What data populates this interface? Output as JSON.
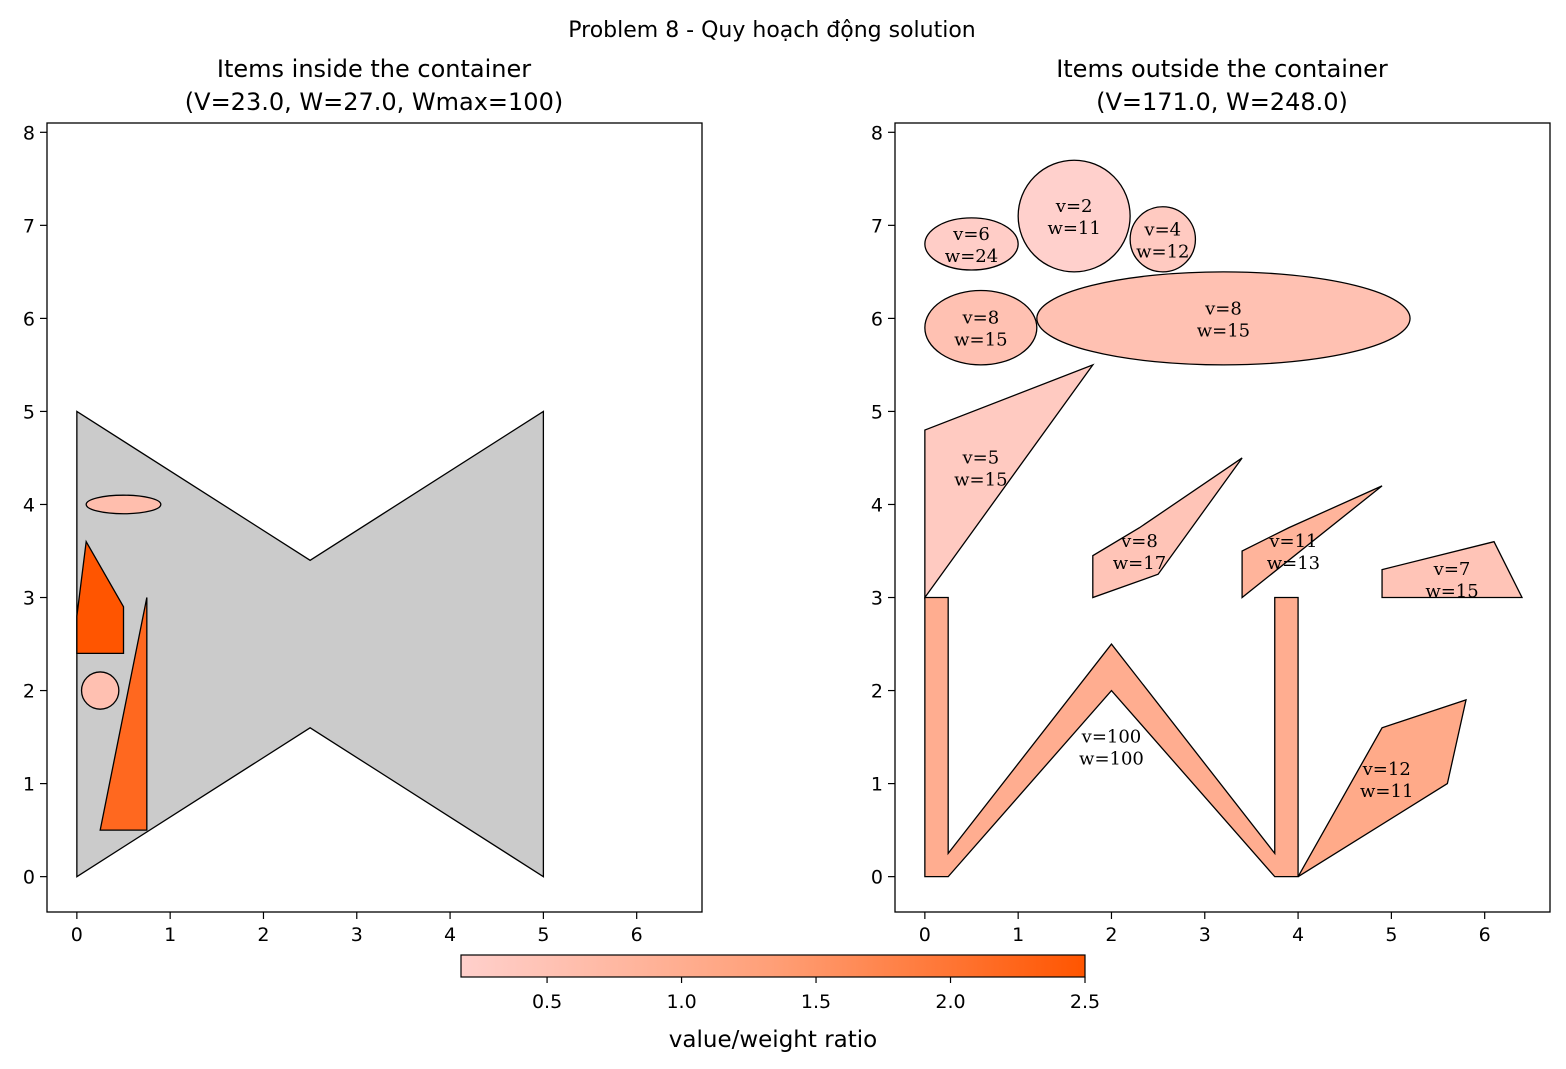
{
  "figure": {
    "suptitle": "Problem 8 - Quy hoạch động solution"
  },
  "colors": {
    "container_fill": "#cbcbcb",
    "stroke": "#000000",
    "cmap_low": "#ffd0cc",
    "cmap_mid": "#ff9f77",
    "cmap_high": "#ff5500"
  },
  "chart_data": [
    {
      "type": "polygon-plot",
      "title_line1": "Items inside the container",
      "title_line2": "(V=23.0, W=27.0, Wmax=100)",
      "xlim": [
        -0.32,
        6.7
      ],
      "ylim": [
        -0.38,
        8.1
      ],
      "xticks": [
        "0",
        "1",
        "2",
        "3",
        "4",
        "5",
        "6"
      ],
      "yticks": [
        "0",
        "1",
        "2",
        "3",
        "4",
        "5",
        "6",
        "7",
        "8"
      ],
      "container": {
        "kind": "polygon",
        "points": [
          [
            0,
            0
          ],
          [
            2.5,
            1.6
          ],
          [
            5,
            0
          ],
          [
            5,
            5
          ],
          [
            2.5,
            3.4
          ],
          [
            0,
            5
          ]
        ]
      },
      "items": [
        {
          "kind": "ellipse",
          "cx": 0.5,
          "cy": 4.0,
          "rx": 0.4,
          "ry": 0.1,
          "ratio": 0.6,
          "label": ""
        },
        {
          "kind": "polygon",
          "points": [
            [
              0,
              2.4
            ],
            [
              0,
              2.8
            ],
            [
              0.1,
              3.6
            ],
            [
              0.5,
              2.9
            ],
            [
              0.5,
              2.4
            ]
          ],
          "ratio": 2.5,
          "label": ""
        },
        {
          "kind": "polygon",
          "points": [
            [
              0.25,
              0.5
            ],
            [
              0.75,
              3.0
            ],
            [
              0.75,
              0.5
            ]
          ],
          "ratio": 2.2,
          "label": ""
        },
        {
          "kind": "ellipse",
          "cx": 0.25,
          "cy": 2.0,
          "rx": 0.2,
          "ry": 0.2,
          "ratio": 0.55,
          "label": ""
        }
      ]
    },
    {
      "type": "polygon-plot",
      "title_line1": "Items outside the container",
      "title_line2": "(V=171.0, W=248.0)",
      "xlim": [
        -0.32,
        6.7
      ],
      "ylim": [
        -0.38,
        8.1
      ],
      "xticks": [
        "0",
        "1",
        "2",
        "3",
        "4",
        "5",
        "6"
      ],
      "yticks": [
        "0",
        "1",
        "2",
        "3",
        "4",
        "5",
        "6",
        "7",
        "8"
      ],
      "items": [
        {
          "kind": "ellipse",
          "cx": 0.5,
          "cy": 6.8,
          "rx": 0.5,
          "ry": 0.28,
          "ratio": 0.25,
          "label_v": "v=6",
          "label_w": "w=24",
          "lx": 0.5,
          "ly": 6.8
        },
        {
          "kind": "ellipse",
          "cx": 1.6,
          "cy": 7.1,
          "rx": 0.6,
          "ry": 0.6,
          "ratio": 0.18,
          "label_v": "v=2",
          "label_w": "w=11",
          "lx": 1.6,
          "ly": 7.1
        },
        {
          "kind": "ellipse",
          "cx": 2.55,
          "cy": 6.85,
          "rx": 0.35,
          "ry": 0.35,
          "ratio": 0.33,
          "label_v": "v=4",
          "label_w": "w=12",
          "lx": 2.55,
          "ly": 6.85
        },
        {
          "kind": "ellipse",
          "cx": 0.6,
          "cy": 5.9,
          "rx": 0.6,
          "ry": 0.4,
          "ratio": 0.53,
          "label_v": "v=8",
          "label_w": "w=15",
          "lx": 0.6,
          "ly": 5.9
        },
        {
          "kind": "ellipse",
          "cx": 3.2,
          "cy": 6.0,
          "rx": 2.0,
          "ry": 0.5,
          "ratio": 0.53,
          "label_v": "v=8",
          "label_w": "w=15",
          "lx": 3.2,
          "ly": 6.0
        },
        {
          "kind": "polygon",
          "points": [
            [
              0,
              3.0
            ],
            [
              0,
              4.8
            ],
            [
              1.8,
              5.5
            ]
          ],
          "ratio": 0.33,
          "label_v": "v=5",
          "label_w": "w=15",
          "lx": 0.6,
          "ly": 4.4
        },
        {
          "kind": "polygon",
          "points": [
            [
              1.8,
              3.0
            ],
            [
              1.8,
              3.45
            ],
            [
              2.3,
              3.75
            ],
            [
              3.4,
              4.5
            ],
            [
              2.5,
              3.25
            ]
          ],
          "ratio": 0.47,
          "label_v": "v=8",
          "label_w": "w=17",
          "lx": 2.3,
          "ly": 3.5
        },
        {
          "kind": "polygon",
          "points": [
            [
              3.4,
              3.0
            ],
            [
              3.4,
              3.5
            ],
            [
              3.9,
              3.75
            ],
            [
              4.9,
              4.2
            ]
          ],
          "ratio": 0.85,
          "label_v": "v=11",
          "label_w": "w=13",
          "lx": 3.95,
          "ly": 3.5
        },
        {
          "kind": "polygon",
          "points": [
            [
              4.9,
              3.0
            ],
            [
              4.9,
              3.3
            ],
            [
              6.1,
              3.6
            ],
            [
              6.4,
              3.0
            ]
          ],
          "ratio": 0.47,
          "label_v": "v=7",
          "label_w": "w=15",
          "lx": 5.65,
          "ly": 3.2
        },
        {
          "kind": "polygon",
          "points": [
            [
              0,
              0
            ],
            [
              0,
              3.0
            ],
            [
              0.25,
              3.0
            ],
            [
              0.25,
              0.25
            ],
            [
              2.0,
              2.5
            ],
            [
              3.75,
              0.25
            ],
            [
              3.75,
              3.0
            ],
            [
              4.0,
              3.0
            ],
            [
              4.0,
              0
            ],
            [
              3.75,
              0
            ],
            [
              2.0,
              2.0
            ],
            [
              0.25,
              0
            ]
          ],
          "ratio": 1.0,
          "label_v": "v=100",
          "label_w": "w=100",
          "lx": 2.0,
          "ly": 1.4
        },
        {
          "kind": "polygon",
          "points": [
            [
              4.0,
              0
            ],
            [
              5.6,
              1.0
            ],
            [
              5.8,
              1.9
            ],
            [
              4.9,
              1.6
            ]
          ],
          "ratio": 1.09,
          "label_v": "v=12",
          "label_w": "w=11",
          "lx": 4.95,
          "ly": 1.05
        }
      ]
    }
  ],
  "colorbar": {
    "vmin": 0.18,
    "vmax": 2.5,
    "ticks": [
      {
        "value": 0.5,
        "label": "0.5"
      },
      {
        "value": 1.0,
        "label": "1.0"
      },
      {
        "value": 1.5,
        "label": "1.5"
      },
      {
        "value": 2.0,
        "label": "2.0"
      },
      {
        "value": 2.5,
        "label": "2.5"
      }
    ],
    "label": "value/weight ratio"
  }
}
